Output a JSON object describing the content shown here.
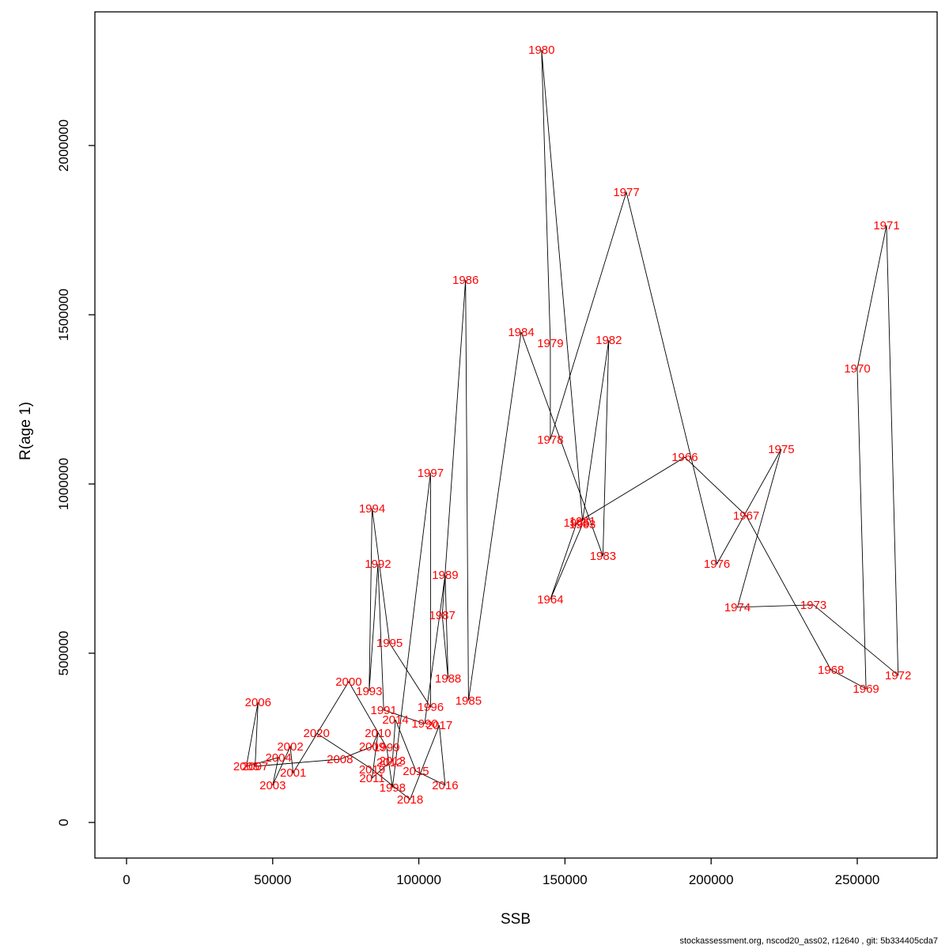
{
  "chart_data": {
    "type": "scatter",
    "title": "",
    "xlabel": "SSB",
    "ylabel": "R(age 1)",
    "xlim": [
      0,
      277000
    ],
    "ylim": [
      0,
      2395000
    ],
    "grid": false,
    "legend": "none",
    "label_color": "#ff0000",
    "line_color": "#000000",
    "axis_color": "#000000",
    "x_ticks": [
      {
        "value": 0,
        "label": "0"
      },
      {
        "value": 50000,
        "label": "50000"
      },
      {
        "value": 100000,
        "label": "100000"
      },
      {
        "value": 150000,
        "label": "150000"
      },
      {
        "value": 200000,
        "label": "200000"
      },
      {
        "value": 250000,
        "label": "250000"
      }
    ],
    "y_ticks": [
      {
        "value": 0,
        "label": "0"
      },
      {
        "value": 500000,
        "label": "500000"
      },
      {
        "value": 1000000,
        "label": "1000000"
      },
      {
        "value": 1500000,
        "label": "1500000"
      },
      {
        "value": 2000000,
        "label": "2000000"
      }
    ],
    "points": [
      {
        "year": "1963",
        "ssb": 156000,
        "r": 881000
      },
      {
        "year": "1964",
        "ssb": 145000,
        "r": 659000
      },
      {
        "year": "1965",
        "ssb": 154000,
        "r": 885000
      },
      {
        "year": "1966",
        "ssb": 191000,
        "r": 1079000
      },
      {
        "year": "1967",
        "ssb": 212000,
        "r": 906000
      },
      {
        "year": "1968",
        "ssb": 241000,
        "r": 451000
      },
      {
        "year": "1969",
        "ssb": 253000,
        "r": 395000
      },
      {
        "year": "1970",
        "ssb": 250000,
        "r": 1341000
      },
      {
        "year": "1971",
        "ssb": 260000,
        "r": 1764000
      },
      {
        "year": "1972",
        "ssb": 264000,
        "r": 435000
      },
      {
        "year": "1973",
        "ssb": 235000,
        "r": 643000
      },
      {
        "year": "1974",
        "ssb": 209000,
        "r": 636000
      },
      {
        "year": "1975",
        "ssb": 224000,
        "r": 1103000
      },
      {
        "year": "1976",
        "ssb": 202000,
        "r": 764000
      },
      {
        "year": "1977",
        "ssb": 171000,
        "r": 1862000
      },
      {
        "year": "1978",
        "ssb": 145000,
        "r": 1131000
      },
      {
        "year": "1979",
        "ssb": 145000,
        "r": 1416000
      },
      {
        "year": "1980",
        "ssb": 142000,
        "r": 2283000
      },
      {
        "year": "1981",
        "ssb": 156000,
        "r": 890000
      },
      {
        "year": "1982",
        "ssb": 165000,
        "r": 1425000
      },
      {
        "year": "1983",
        "ssb": 163000,
        "r": 787000
      },
      {
        "year": "1984",
        "ssb": 135000,
        "r": 1449000
      },
      {
        "year": "1985",
        "ssb": 117000,
        "r": 360000
      },
      {
        "year": "1986",
        "ssb": 116000,
        "r": 1603000
      },
      {
        "year": "1987",
        "ssb": 108000,
        "r": 612000
      },
      {
        "year": "1988",
        "ssb": 110000,
        "r": 425000
      },
      {
        "year": "1989",
        "ssb": 109000,
        "r": 731000
      },
      {
        "year": "1990",
        "ssb": 102000,
        "r": 292000
      },
      {
        "year": "1991",
        "ssb": 88000,
        "r": 332000
      },
      {
        "year": "1992",
        "ssb": 86000,
        "r": 764000
      },
      {
        "year": "1993",
        "ssb": 83000,
        "r": 388000
      },
      {
        "year": "1994",
        "ssb": 84000,
        "r": 928000
      },
      {
        "year": "1995",
        "ssb": 90000,
        "r": 530000
      },
      {
        "year": "1996",
        "ssb": 104000,
        "r": 341000
      },
      {
        "year": "1997",
        "ssb": 104000,
        "r": 1033000
      },
      {
        "year": "1998",
        "ssb": 91000,
        "r": 103000
      },
      {
        "year": "1999",
        "ssb": 89000,
        "r": 222000
      },
      {
        "year": "2000",
        "ssb": 76000,
        "r": 416000
      },
      {
        "year": "2001",
        "ssb": 57000,
        "r": 147000
      },
      {
        "year": "2002",
        "ssb": 56000,
        "r": 224000
      },
      {
        "year": "2003",
        "ssb": 50000,
        "r": 110000
      },
      {
        "year": "2004",
        "ssb": 52000,
        "r": 192000
      },
      {
        "year": "2005",
        "ssb": 41000,
        "r": 166000
      },
      {
        "year": "2006",
        "ssb": 45000,
        "r": 355000
      },
      {
        "year": "2007",
        "ssb": 44000,
        "r": 166000
      },
      {
        "year": "2008",
        "ssb": 73000,
        "r": 187000
      },
      {
        "year": "2009",
        "ssb": 84000,
        "r": 224000
      },
      {
        "year": "2010",
        "ssb": 86000,
        "r": 264000
      },
      {
        "year": "2011",
        "ssb": 84000,
        "r": 131000
      },
      {
        "year": "2012",
        "ssb": 90000,
        "r": 178000
      },
      {
        "year": "2013",
        "ssb": 91000,
        "r": 182000
      },
      {
        "year": "2014",
        "ssb": 92000,
        "r": 304000
      },
      {
        "year": "2015",
        "ssb": 99000,
        "r": 152000
      },
      {
        "year": "2016",
        "ssb": 109000,
        "r": 110000
      },
      {
        "year": "2017",
        "ssb": 107000,
        "r": 287000
      },
      {
        "year": "2018",
        "ssb": 97000,
        "r": 68000
      },
      {
        "year": "2019",
        "ssb": 84000,
        "r": 157000
      },
      {
        "year": "2020",
        "ssb": 65000,
        "r": 264000
      }
    ]
  },
  "footer": {
    "credit": "stockassessment.org, nscod20_ass02, r12640 , git: 5b334405cda7"
  }
}
